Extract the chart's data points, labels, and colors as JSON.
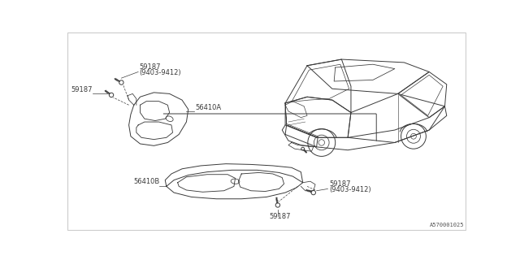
{
  "bg_color": "#ffffff",
  "border_color": "#cccccc",
  "line_color": "#3a3a3a",
  "text_color": "#3a3a3a",
  "watermark": "A570001025",
  "font_size": 6.0,
  "lw": 0.7
}
